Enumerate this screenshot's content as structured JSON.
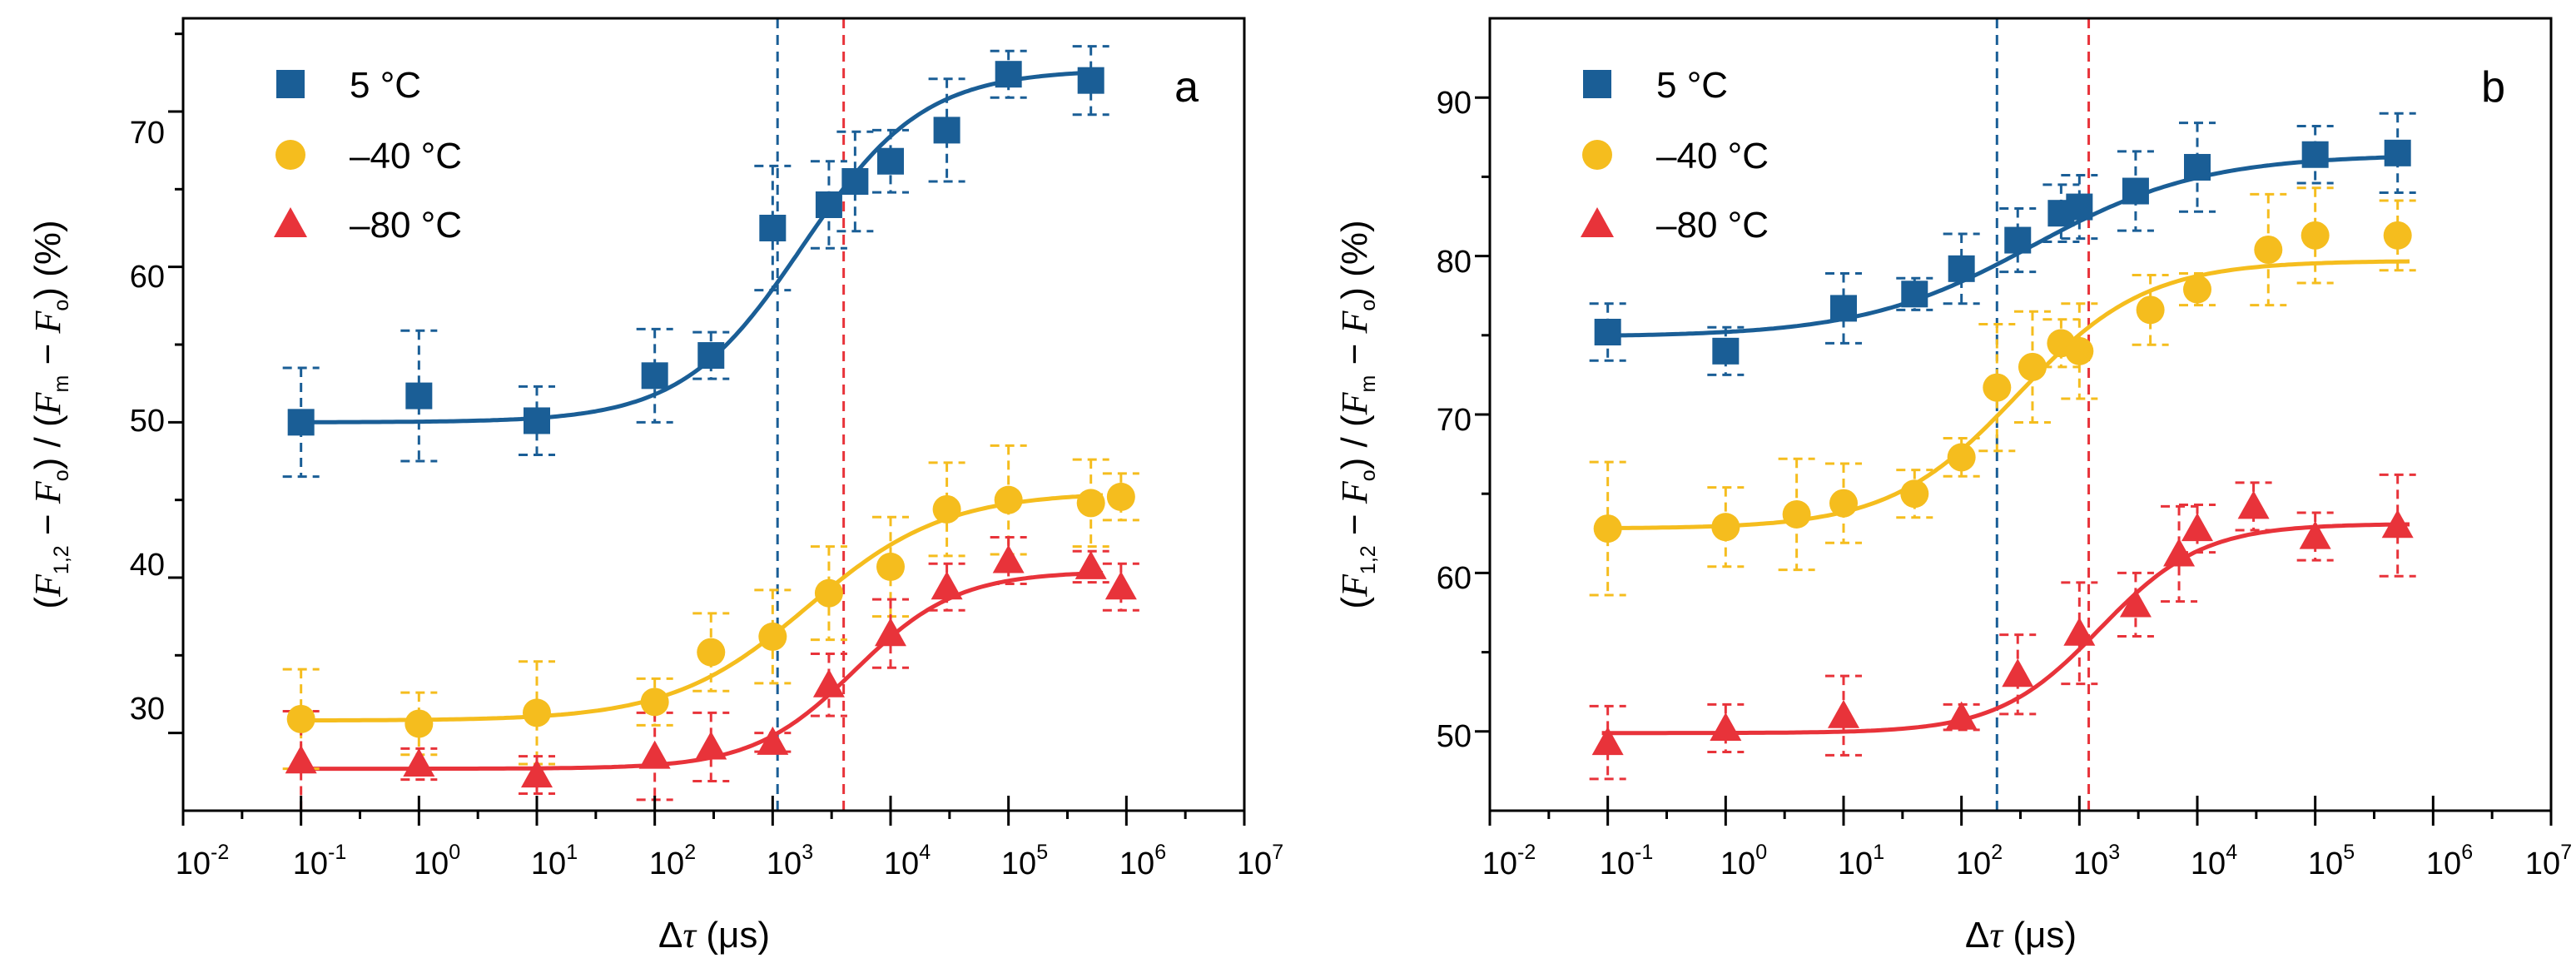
{
  "chart_data": [
    {
      "type": "scatter",
      "panel": "a",
      "xscale": "log",
      "xlim_exp": [
        -2,
        7
      ],
      "ylim": [
        25,
        76
      ],
      "yticks": [
        30,
        40,
        50,
        60,
        70
      ],
      "xlabel": "Δτ (μs)",
      "ylabel": "(F1,2 − Fo) / (Fm − Fo) (%)",
      "legend_position": "top-left",
      "vlines": [
        {
          "x": 1100,
          "color": "#1a5e96"
        },
        {
          "x": 4000,
          "color": "#e8333a"
        }
      ],
      "series": [
        {
          "name": "5 °C",
          "marker": "square",
          "color": "#1a5e96",
          "x": [
            0.1,
            1,
            10,
            100,
            300,
            1000,
            3000,
            5000,
            10000,
            30000,
            100000,
            500000
          ],
          "y": [
            50.0,
            51.7,
            50.1,
            53.0,
            54.3,
            62.5,
            64.0,
            65.5,
            66.8,
            68.8,
            72.4,
            72.0
          ],
          "err": [
            3.5,
            4.2,
            2.2,
            3.0,
            1.5,
            4.0,
            2.8,
            3.2,
            2.0,
            3.3,
            1.5,
            2.2
          ],
          "fit": {
            "A1": 50.0,
            "A2": 72.7,
            "x0": 1800,
            "p": 0.85
          }
        },
        {
          "name": "–40 °C",
          "marker": "circle",
          "color": "#f5bd1e",
          "x": [
            0.1,
            1,
            10,
            100,
            300,
            1000,
            3000,
            10000,
            30000,
            100000,
            500000,
            900000
          ],
          "y": [
            30.9,
            30.6,
            31.3,
            32.0,
            35.2,
            36.2,
            39.0,
            40.7,
            44.4,
            45.0,
            44.8,
            45.2
          ],
          "err": [
            3.2,
            2.0,
            3.3,
            1.5,
            2.5,
            3.0,
            3.0,
            3.2,
            3.0,
            3.5,
            2.8,
            1.5
          ],
          "fit": {
            "A1": 30.8,
            "A2": 45.5,
            "x0": 2000,
            "p": 0.75
          }
        },
        {
          "name": "–80 °C",
          "marker": "triangle",
          "color": "#e8333a",
          "x": [
            0.1,
            1,
            10,
            100,
            300,
            1000,
            3000,
            10000,
            30000,
            100000,
            500000,
            900000
          ],
          "y": [
            28.2,
            28.0,
            27.3,
            28.5,
            29.1,
            29.4,
            33.1,
            36.4,
            39.4,
            41.1,
            40.7,
            39.4
          ],
          "err": [
            3.2,
            1.0,
            1.2,
            2.8,
            2.2,
            0.6,
            2.0,
            2.2,
            1.5,
            1.5,
            1.0,
            1.5
          ],
          "fit": {
            "A1": 27.7,
            "A2": 40.4,
            "x0": 5000,
            "p": 1.0
          }
        }
      ]
    },
    {
      "type": "scatter",
      "panel": "b",
      "xscale": "log",
      "xlim_exp": [
        -2,
        7
      ],
      "ylim": [
        45,
        95
      ],
      "yticks": [
        50,
        60,
        70,
        80,
        90
      ],
      "xlabel": "Δτ (μs)",
      "ylabel": "(F1,2 − Fo) / (Fm − Fo) (%)",
      "legend_position": "top-left",
      "vlines": [
        {
          "x": 200,
          "color": "#1a5e96"
        },
        {
          "x": 1200,
          "color": "#e8333a"
        }
      ],
      "series": [
        {
          "name": "5 °C",
          "marker": "square",
          "color": "#1a5e96",
          "x": [
            0.1,
            1,
            10,
            40,
            100,
            300,
            700,
            1000,
            3000,
            10000,
            100000,
            500000
          ],
          "y": [
            75.2,
            74.0,
            76.7,
            77.6,
            79.2,
            81.0,
            82.7,
            83.1,
            84.1,
            85.6,
            86.4,
            86.5
          ],
          "err": [
            1.8,
            1.5,
            2.2,
            1.0,
            2.2,
            2.0,
            1.8,
            2.0,
            2.5,
            2.8,
            1.8,
            2.5
          ],
          "fit": {
            "A1": 74.9,
            "A2": 86.4,
            "x0": 400,
            "p": 0.6
          }
        },
        {
          "name": "–40 °C",
          "marker": "circle",
          "color": "#f5bd1e",
          "x": [
            0.1,
            1,
            4,
            10,
            40,
            100,
            200,
            400,
            700,
            1000,
            4000,
            10000,
            40000,
            100000,
            500000
          ],
          "y": [
            62.8,
            62.9,
            63.7,
            64.4,
            65.0,
            67.3,
            71.7,
            73.0,
            74.5,
            74.0,
            76.6,
            77.9,
            80.4,
            81.3,
            81.3
          ],
          "err": [
            4.2,
            2.5,
            3.5,
            2.5,
            1.5,
            1.2,
            4.0,
            3.5,
            1.5,
            3.0,
            2.2,
            1.0,
            3.5,
            3.0,
            2.2
          ],
          "fit": {
            "A1": 62.8,
            "A2": 79.7,
            "x0": 300,
            "p": 0.8
          }
        },
        {
          "name": "–80 °C",
          "marker": "triangle",
          "color": "#e8333a",
          "x": [
            0.1,
            1,
            10,
            100,
            300,
            1000,
            3000,
            7000,
            10000,
            30000,
            100000,
            500000
          ],
          "y": [
            49.3,
            50.2,
            51.0,
            50.9,
            53.6,
            56.2,
            58.0,
            61.2,
            62.8,
            64.2,
            62.3,
            63.0
          ],
          "err": [
            2.3,
            1.5,
            2.5,
            0.8,
            2.5,
            3.2,
            2.0,
            3.0,
            1.5,
            1.5,
            1.5,
            3.2
          ],
          "fit": {
            "A1": 49.9,
            "A2": 63.1,
            "x0": 1500,
            "p": 1.0
          }
        }
      ]
    }
  ]
}
